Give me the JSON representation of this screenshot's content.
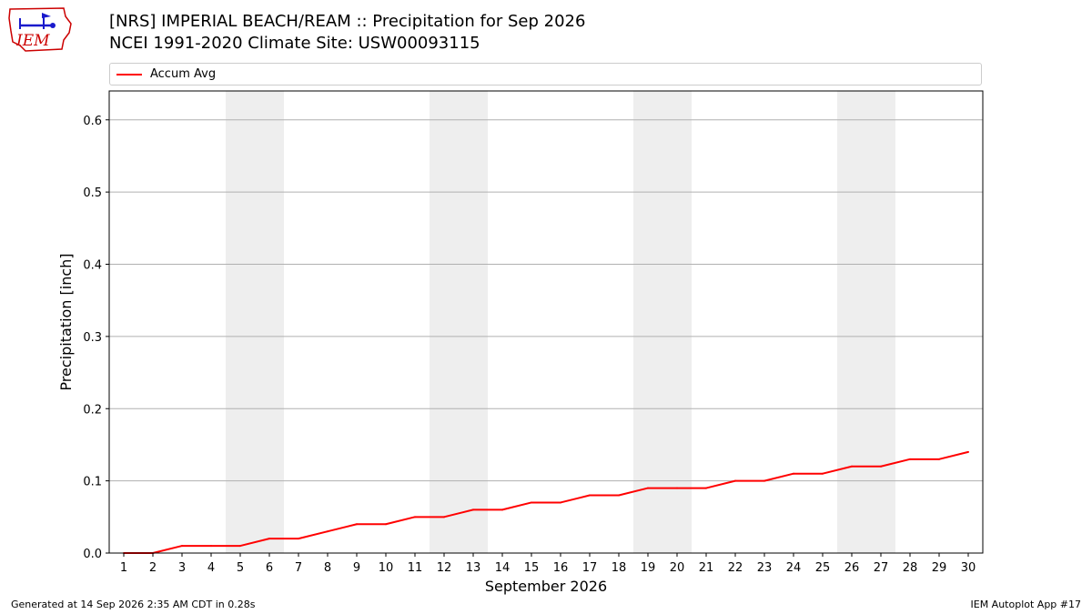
{
  "header": {
    "title_line1": "[NRS] IMPERIAL BEACH/REAM :: Precipitation for Sep 2026",
    "title_line2": "NCEI 1991-2020 Climate Site: USW00093115",
    "logo_text": "IEM"
  },
  "footer": {
    "generated": "Generated at 14 Sep 2026 2:35 AM CDT in 0.28s",
    "app": "IEM Autoplot App #17"
  },
  "colors": {
    "line": "#ff0000",
    "weekend_band": "#eeeeee",
    "grid": "#b0b0b0",
    "logo_blue": "#1a1acc",
    "logo_red": "#cc0000"
  },
  "chart_data": {
    "type": "line",
    "xlabel": "September 2026",
    "ylabel": "Precipitation [inch]",
    "x": [
      1,
      2,
      3,
      4,
      5,
      6,
      7,
      8,
      9,
      10,
      11,
      12,
      13,
      14,
      15,
      16,
      17,
      18,
      19,
      20,
      21,
      22,
      23,
      24,
      25,
      26,
      27,
      28,
      29,
      30
    ],
    "xlim": [
      0.5,
      30.5
    ],
    "ylim": [
      0,
      0.64
    ],
    "yticks": [
      0.0,
      0.1,
      0.2,
      0.3,
      0.4,
      0.5,
      0.6
    ],
    "ytick_labels": [
      "0.0",
      "0.1",
      "0.2",
      "0.3",
      "0.4",
      "0.5",
      "0.6"
    ],
    "grid": "horizontal",
    "legend_position": "top",
    "weekend_bands": [
      [
        5,
        6
      ],
      [
        12,
        13
      ],
      [
        19,
        20
      ],
      [
        26,
        27
      ]
    ],
    "series": [
      {
        "name": "Accum Avg",
        "color": "#ff0000",
        "values": [
          0.0,
          0.0,
          0.01,
          0.01,
          0.01,
          0.02,
          0.02,
          0.03,
          0.04,
          0.04,
          0.05,
          0.05,
          0.06,
          0.06,
          0.07,
          0.07,
          0.08,
          0.08,
          0.09,
          0.09,
          0.09,
          0.1,
          0.1,
          0.11,
          0.11,
          0.12,
          0.12,
          0.13,
          0.13,
          0.14
        ]
      }
    ]
  }
}
